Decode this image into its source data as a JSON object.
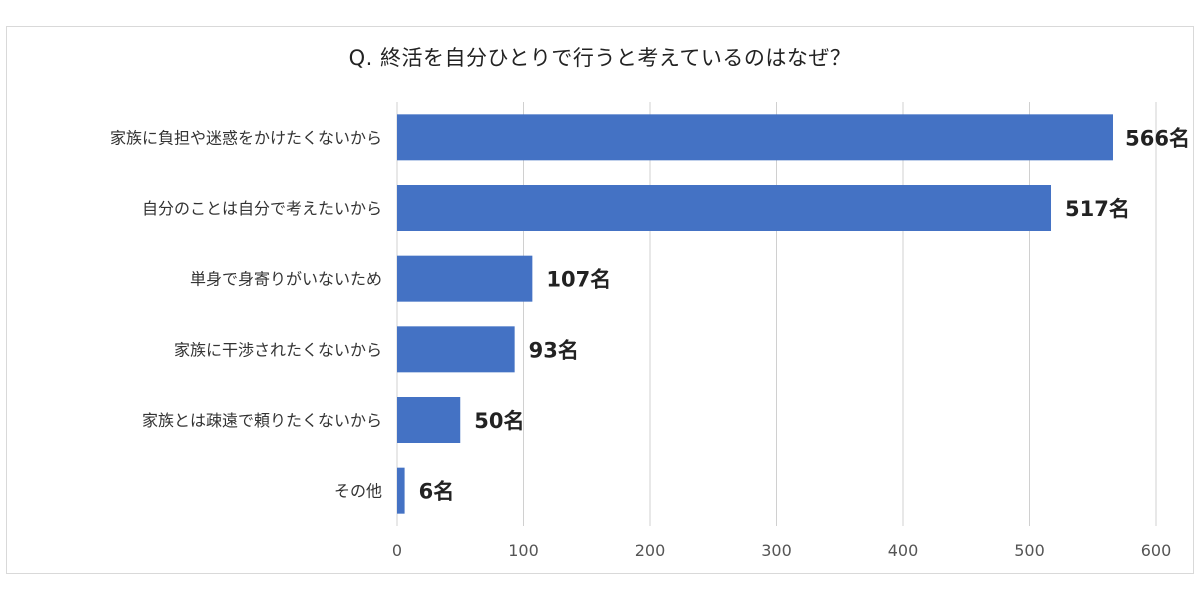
{
  "chart_data": {
    "type": "bar",
    "orientation": "horizontal",
    "title": "Q. 終活を自分ひとりで行うと考えているのはなぜ？",
    "categories": [
      "家族に負担や迷惑をかけたくないから",
      "自分のことは自分で考えたいから",
      "単身で身寄りがいないため",
      "家族に干渉されたくないから",
      "家族とは疎遠で頼りたくないから",
      "その他"
    ],
    "values": [
      566,
      517,
      107,
      93,
      50,
      6
    ],
    "value_labels": [
      "566名",
      "517名",
      "107名",
      "93名",
      "50名",
      "6名"
    ],
    "xlim": [
      0,
      600
    ],
    "xticks": [
      "0",
      "100",
      "200",
      "300",
      "400",
      "500",
      "600"
    ],
    "xtick_values": [
      0,
      100,
      200,
      300,
      400,
      500,
      600
    ],
    "grid": true,
    "legend": "none",
    "bar_color": "#4472c4"
  }
}
